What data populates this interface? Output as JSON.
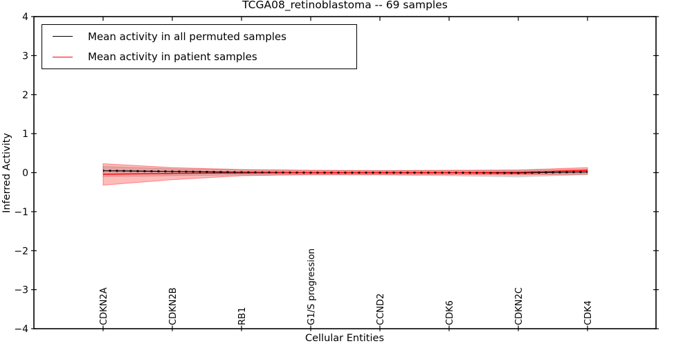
{
  "title": "TCGA08_retinoblastoma -- 69 samples",
  "legend": {
    "items": [
      {
        "label": "Mean activity in all permuted samples",
        "color": "#000000"
      },
      {
        "label": "Mean activity in patient samples",
        "color": "#ff0000"
      }
    ]
  },
  "chart_data": {
    "type": "line",
    "title": "TCGA08_retinoblastoma -- 69 samples",
    "xlabel": "Cellular Entities",
    "ylabel": "Inferred Activity",
    "ylim": [
      -4,
      4
    ],
    "yticks": [
      4,
      3,
      2,
      1,
      0,
      -1,
      -2,
      -3,
      -4
    ],
    "ytick_labels": [
      "4",
      "3",
      "2",
      "1",
      "0",
      "−1",
      "−2",
      "−3",
      "−4"
    ],
    "grid": false,
    "legend_position": "upper left",
    "categories": [
      "CDKN2A",
      "CDKN2B",
      "RB1",
      "G1/S progression",
      "CCND2",
      "CDK6",
      "CDKN2C",
      "CDK4"
    ],
    "points_per_labeled_interval": 10,
    "n_points": 71,
    "marker_note": "small black square marker at every data point on permuted-mean line",
    "series": [
      {
        "name": "Mean activity in all permuted samples",
        "color": "#000000",
        "band_color": "rgba(128,128,128,0.25)",
        "values_at_labels": [
          0.05,
          0.03,
          0.01,
          0.0,
          0.0,
          0.0,
          -0.01,
          0.02
        ],
        "band_upper_at_labels": [
          0.16,
          0.1,
          0.08,
          0.06,
          0.06,
          0.06,
          0.06,
          0.09
        ],
        "band_lower_at_labels": [
          -0.1,
          -0.08,
          -0.06,
          -0.06,
          -0.06,
          -0.08,
          -0.11,
          -0.05
        ]
      },
      {
        "name": "Mean activity in patient samples",
        "color": "#ff0000",
        "band_color": "rgba(255,0,0,0.27)",
        "values_at_labels": [
          -0.04,
          -0.02,
          -0.01,
          0.0,
          0.0,
          0.0,
          0.01,
          0.06
        ],
        "band_upper_at_labels": [
          0.23,
          0.13,
          0.08,
          0.06,
          0.05,
          0.06,
          0.07,
          0.13
        ],
        "band_lower_at_labels": [
          -0.32,
          -0.18,
          -0.08,
          -0.05,
          -0.05,
          -0.05,
          -0.06,
          -0.04
        ]
      }
    ]
  }
}
